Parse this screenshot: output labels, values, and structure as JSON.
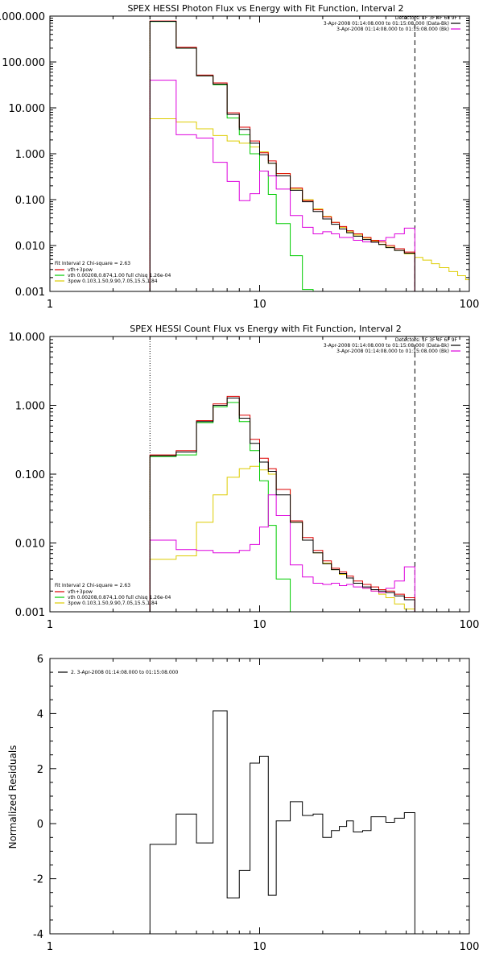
{
  "chart_data": [
    {
      "type": "line",
      "title": "SPEX HESSI Photon Flux vs Energy with Fit Function, Interval 2",
      "xscale": "log",
      "yscale": "log",
      "xlim": [
        1,
        100
      ],
      "ylim": [
        0.001,
        1000
      ],
      "x_ticks": [
        "1",
        "10",
        "100"
      ],
      "y_ticks": [
        "0.001",
        "0.010",
        "0.100",
        "1.000",
        "10.000",
        "100.000",
        "1000.000"
      ],
      "legend_right": [
        "Detectors: 1F 3F 4F 6F 9F",
        "3-Apr-2008 01:14:08.000 to 01:15:08.000 (Data-Bk)",
        "3-Apr-2008 01:14:08.000 to 01:15:08.000 (Bk)"
      ],
      "legend_left": [
        "Fit Interval  2   Chi-square = 2.63",
        "vth+3pow",
        "vth 0.00208,0.874,1.00  full chisq 1.26e-04",
        "3pow 0.103,1.50,9.90,7.05,15.5,1.84"
      ],
      "colors": {
        "data": "#000000",
        "total": "#dd0000",
        "vth": "#00cc00",
        "pow": "#ddcc00",
        "bk": "#dd00dd"
      },
      "low_line_x": 3,
      "high_line_x": 55,
      "energy_edges": [
        3,
        4,
        5,
        6,
        7,
        8,
        9,
        10,
        11,
        12,
        14,
        16,
        18,
        20,
        22,
        24,
        26,
        28,
        31,
        34,
        37,
        40,
        44,
        49,
        55
      ],
      "pow_edges": [
        3,
        4,
        5,
        6,
        7,
        8,
        9,
        10,
        11,
        12,
        14,
        16,
        18,
        20,
        22,
        24,
        26,
        28,
        31,
        34,
        37,
        40,
        44,
        49,
        55,
        60,
        66,
        72,
        80,
        88,
        96,
        100
      ],
      "series": [
        {
          "key": "total",
          "values": [
            780,
            210,
            52,
            35,
            7.8,
            3.8,
            1.9,
            1.05,
            0.7,
            0.37,
            0.18,
            0.095,
            0.06,
            0.042,
            0.032,
            0.026,
            0.021,
            0.018,
            0.015,
            0.013,
            0.012,
            0.01,
            0.0085,
            0.0072
          ]
        },
        {
          "key": "data",
          "values": [
            770,
            200,
            50,
            33,
            7.2,
            3.4,
            1.7,
            0.95,
            0.62,
            0.33,
            0.16,
            0.09,
            0.055,
            0.038,
            0.029,
            0.023,
            0.019,
            0.016,
            0.0135,
            0.0118,
            0.0105,
            0.009,
            0.0078,
            0.0068
          ]
        },
        {
          "key": "vth",
          "values": [
            760,
            200,
            50,
            32,
            6.0,
            2.6,
            1.0,
            0.42,
            0.13,
            0.03,
            0.006,
            0.0011
          ]
        },
        {
          "key": "pow",
          "values": [
            5.8,
            4.9,
            3.5,
            2.5,
            1.9,
            1.7,
            1.4,
            1.1,
            0.62,
            0.37,
            0.17,
            0.1,
            0.063,
            0.043,
            0.032,
            0.025,
            0.02,
            0.017,
            0.0145,
            0.0125,
            0.0107,
            0.0092,
            0.0078,
            0.0066,
            0.0055,
            0.0048,
            0.004,
            0.0033,
            0.0027,
            0.0022,
            0.0018
          ]
        },
        {
          "key": "bk",
          "values": [
            40,
            2.6,
            2.2,
            0.65,
            0.25,
            0.095,
            0.135,
            0.42,
            0.33,
            0.17,
            0.045,
            0.025,
            0.018,
            0.02,
            0.018,
            0.015,
            0.015,
            0.013,
            0.012,
            0.012,
            0.013,
            0.015,
            0.018,
            0.024
          ]
        }
      ]
    },
    {
      "type": "line",
      "title": "SPEX HESSI Count Flux vs Energy with Fit Function, Interval 2",
      "xscale": "log",
      "yscale": "log",
      "xlim": [
        1,
        100
      ],
      "ylim": [
        0.001,
        10
      ],
      "x_ticks": [
        "1",
        "10",
        "100"
      ],
      "y_ticks": [
        "0.001",
        "0.010",
        "0.100",
        "1.000",
        "10.000"
      ],
      "legend_right": [
        "Detectors: 1F 3F 4F 6F 9F",
        "3-Apr-2008 01:14:08.000 to 01:15:08.000 (Data-Bk)",
        "3-Apr-2008 01:14:08.000 to 01:15:08.000 (Bk)"
      ],
      "legend_left": [
        "Fit Interval  2   Chi-square = 2.63",
        "vth+3pow",
        "vth 0.00208,0.874,1.00  full chisq 1.26e-04",
        "3pow 0.103,1.50,9.90,7.05,15.5,1.84"
      ],
      "colors": {
        "data": "#000000",
        "total": "#dd0000",
        "vth": "#00cc00",
        "pow": "#ddcc00",
        "bk": "#dd00dd"
      },
      "low_line_x": 3,
      "high_line_x": 55,
      "energy_edges": [
        3,
        4,
        5,
        6,
        7,
        8,
        9,
        10,
        11,
        12,
        14,
        16,
        18,
        20,
        22,
        24,
        26,
        28,
        31,
        34,
        37,
        40,
        44,
        49,
        55
      ],
      "series": [
        {
          "key": "total",
          "values": [
            0.19,
            0.22,
            0.6,
            1.05,
            1.35,
            0.72,
            0.32,
            0.17,
            0.12,
            0.06,
            0.021,
            0.012,
            0.0078,
            0.0055,
            0.0043,
            0.0038,
            0.0033,
            0.0028,
            0.0025,
            0.0023,
            0.0021,
            0.002,
            0.0018,
            0.0016
          ]
        },
        {
          "key": "data",
          "values": [
            0.185,
            0.21,
            0.58,
            1.0,
            1.28,
            0.65,
            0.28,
            0.15,
            0.11,
            0.05,
            0.02,
            0.011,
            0.0072,
            0.005,
            0.0041,
            0.0036,
            0.0031,
            0.0026,
            0.0023,
            0.0021,
            0.002,
            0.0019,
            0.0017,
            0.0015
          ]
        },
        {
          "key": "vth",
          "values": [
            0.18,
            0.19,
            0.56,
            0.95,
            1.1,
            0.58,
            0.22,
            0.08,
            0.018,
            0.003,
            0.0008
          ]
        },
        {
          "key": "pow",
          "values": [
            0.0058,
            0.0065,
            0.02,
            0.05,
            0.09,
            0.12,
            0.13,
            0.115,
            0.1,
            0.06,
            0.02,
            0.011,
            0.0072,
            0.0051,
            0.0041,
            0.0035,
            0.0031,
            0.0026,
            0.0022,
            0.002,
            0.0018,
            0.0016,
            0.0013,
            0.0011
          ]
        },
        {
          "key": "bk",
          "values": [
            0.011,
            0.008,
            0.0078,
            0.0072,
            0.0072,
            0.0078,
            0.0095,
            0.017,
            0.05,
            0.025,
            0.0048,
            0.0032,
            0.0026,
            0.0025,
            0.0026,
            0.0024,
            0.0025,
            0.0023,
            0.0022,
            0.002,
            0.0019,
            0.0022,
            0.0028,
            0.0045
          ]
        }
      ]
    },
    {
      "type": "line",
      "title": "",
      "xscale": "log",
      "yscale": "linear",
      "xlim": [
        1,
        100
      ],
      "ylim": [
        -4,
        6
      ],
      "ylabel": "Normalized Residuals",
      "x_ticks": [
        "1",
        "10",
        "100"
      ],
      "y_ticks": [
        "-4",
        "-2",
        "0",
        "2",
        "4",
        "6"
      ],
      "legend": "2.  3-Apr-2008 01:14:08.000 to 01:15:08.000",
      "energy_edges": [
        3,
        4,
        5,
        6,
        7,
        8,
        9,
        10,
        11,
        12,
        14,
        16,
        18,
        20,
        22,
        24,
        26,
        28,
        31,
        34,
        37,
        40,
        44,
        49,
        55
      ],
      "series": [
        {
          "key": "residuals",
          "color": "#000000",
          "values": [
            -0.75,
            0.35,
            -0.7,
            4.1,
            -2.7,
            -1.7,
            2.2,
            2.45,
            -2.6,
            0.1,
            0.8,
            0.3,
            0.35,
            -0.5,
            -0.25,
            -0.1,
            0.1,
            -0.3,
            -0.25,
            0.25,
            0.25,
            0.05,
            0.2,
            0.4
          ]
        }
      ]
    }
  ]
}
